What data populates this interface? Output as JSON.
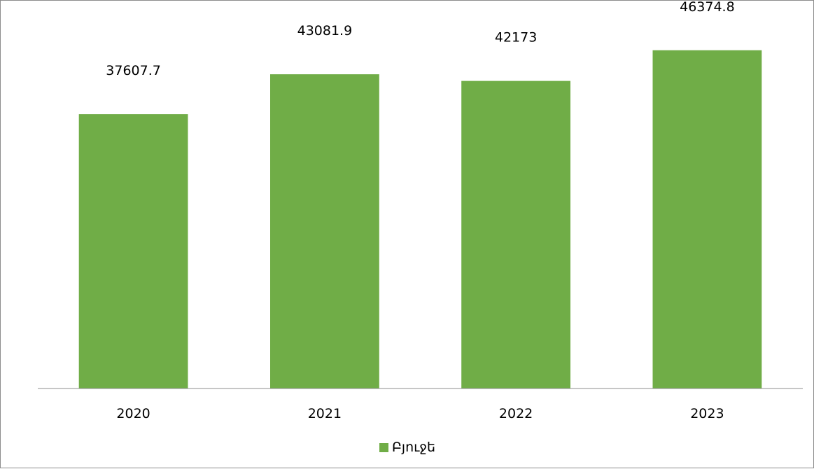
{
  "chart_data": {
    "type": "bar",
    "categories": [
      "2020",
      "2021",
      "2022",
      "2023"
    ],
    "series": [
      {
        "name": "Բյուջե",
        "values": [
          37607.7,
          43081.9,
          42173,
          46374.8
        ],
        "color": "#70ad47"
      }
    ],
    "data_labels": [
      "37607.7",
      "43081.9",
      "42173",
      "46374.8"
    ],
    "ylim": [
      0,
      50000
    ],
    "y_axis_visible": false,
    "grid": false,
    "legend_position": "bottom"
  }
}
